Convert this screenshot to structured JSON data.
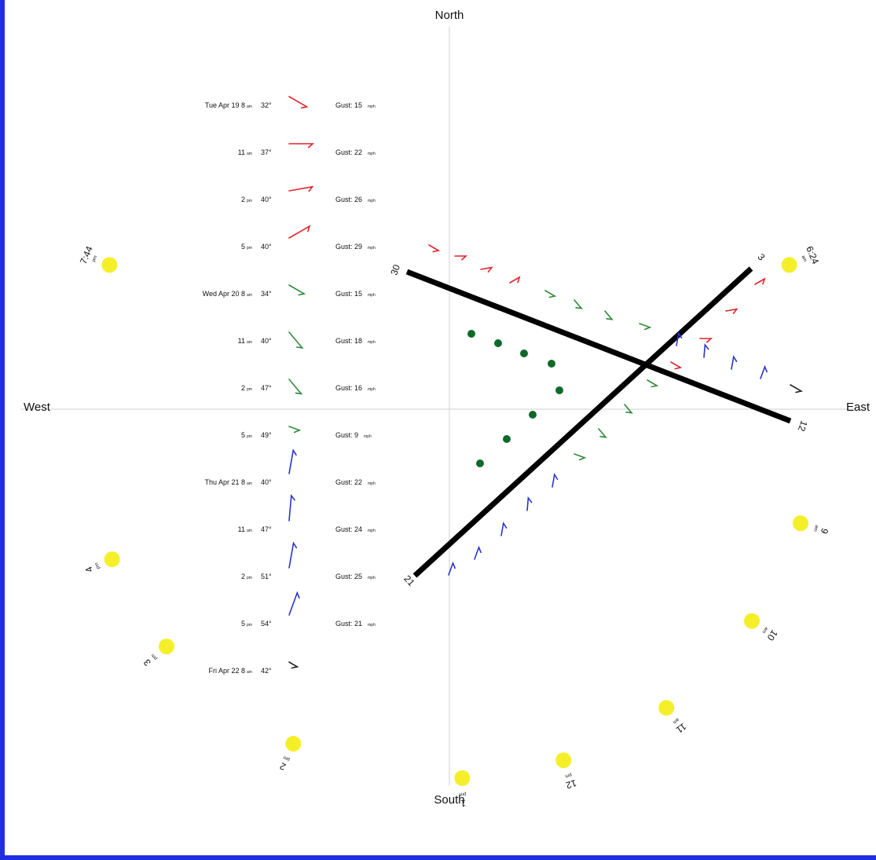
{
  "compass": {
    "north": "North",
    "south": "South",
    "east": "East",
    "west": "West"
  },
  "colors": {
    "frame": "#1f2ee0",
    "sun": "#f5ef2a",
    "runway": "#000000",
    "dot": "#0f6a2a",
    "tue": "#e0242a",
    "wed": "#2f8a3a",
    "thu": "#2a35c8",
    "fri": "#222222"
  },
  "runways": [
    {
      "name": "03/21",
      "end_a": "3",
      "end_b": "21"
    },
    {
      "name": "12/30",
      "end_a": "12",
      "end_b": "30"
    }
  ],
  "forecast": [
    {
      "time": "Tue Apr 19 8",
      "unit": "am",
      "temp": "32°",
      "gust": "Gust: 15",
      "gust_unit": "mph",
      "day": "tue",
      "dir": 300,
      "len": 26
    },
    {
      "time": "11",
      "unit": "am",
      "temp": "37°",
      "gust": "Gust: 22",
      "gust_unit": "mph",
      "day": "tue",
      "dir": 270,
      "len": 30
    },
    {
      "time": "2",
      "unit": "pm",
      "temp": "40°",
      "gust": "Gust: 26",
      "gust_unit": "mph",
      "day": "tue",
      "dir": 260,
      "len": 30
    },
    {
      "time": "5",
      "unit": "pm",
      "temp": "40°",
      "gust": "Gust: 29",
      "gust_unit": "mph",
      "day": "tue",
      "dir": 240,
      "len": 30
    },
    {
      "time": "Wed Apr 20 8",
      "unit": "am",
      "temp": "34°",
      "gust": "Gust: 15",
      "gust_unit": "mph",
      "day": "wed",
      "dir": 300,
      "len": 22
    },
    {
      "time": "11",
      "unit": "am",
      "temp": "40°",
      "gust": "Gust: 18",
      "gust_unit": "mph",
      "day": "wed",
      "dir": 320,
      "len": 26
    },
    {
      "time": "2",
      "unit": "pm",
      "temp": "47°",
      "gust": "Gust: 16",
      "gust_unit": "mph",
      "day": "wed",
      "dir": 320,
      "len": 24
    },
    {
      "time": "5",
      "unit": "pm",
      "temp": "49°",
      "gust": "Gust: 9",
      "gust_unit": "mph",
      "day": "wed",
      "dir": 290,
      "len": 14
    },
    {
      "time": "Thu Apr 21 8",
      "unit": "am",
      "temp": "40°",
      "gust": "Gust: 22",
      "gust_unit": "mph",
      "day": "thu",
      "dir": 190,
      "len": 30
    },
    {
      "time": "11",
      "unit": "am",
      "temp": "47°",
      "gust": "Gust: 24",
      "gust_unit": "mph",
      "day": "thu",
      "dir": 185,
      "len": 32
    },
    {
      "time": "2",
      "unit": "pm",
      "temp": "51°",
      "gust": "Gust: 25",
      "gust_unit": "mph",
      "day": "thu",
      "dir": 190,
      "len": 32
    },
    {
      "time": "5",
      "unit": "pm",
      "temp": "54°",
      "gust": "Gust: 21",
      "gust_unit": "mph",
      "day": "thu",
      "dir": 200,
      "len": 30
    },
    {
      "time": "Fri Apr 22 8",
      "unit": "am",
      "temp": "42°",
      "gust": "",
      "gust_unit": "",
      "day": "fri",
      "dir": 300,
      "len": 12
    }
  ],
  "sun_positions": [
    {
      "time": "7:44",
      "unit": "pm",
      "bearing": 293
    },
    {
      "time": "6:24",
      "unit": "am",
      "bearing": 67
    },
    {
      "time": "9",
      "unit": "am",
      "bearing": 108
    },
    {
      "time": "10",
      "unit": "am",
      "bearing": 125
    },
    {
      "time": "11",
      "unit": "am",
      "bearing": 144
    },
    {
      "time": "12",
      "unit": "pm",
      "bearing": 162
    },
    {
      "time": "1",
      "unit": "pm",
      "bearing": 178
    },
    {
      "time": "2",
      "unit": "pm",
      "bearing": 205
    },
    {
      "time": "3",
      "unit": "pm",
      "bearing": 230
    },
    {
      "time": "4",
      "unit": "pm",
      "bearing": 246
    }
  ]
}
